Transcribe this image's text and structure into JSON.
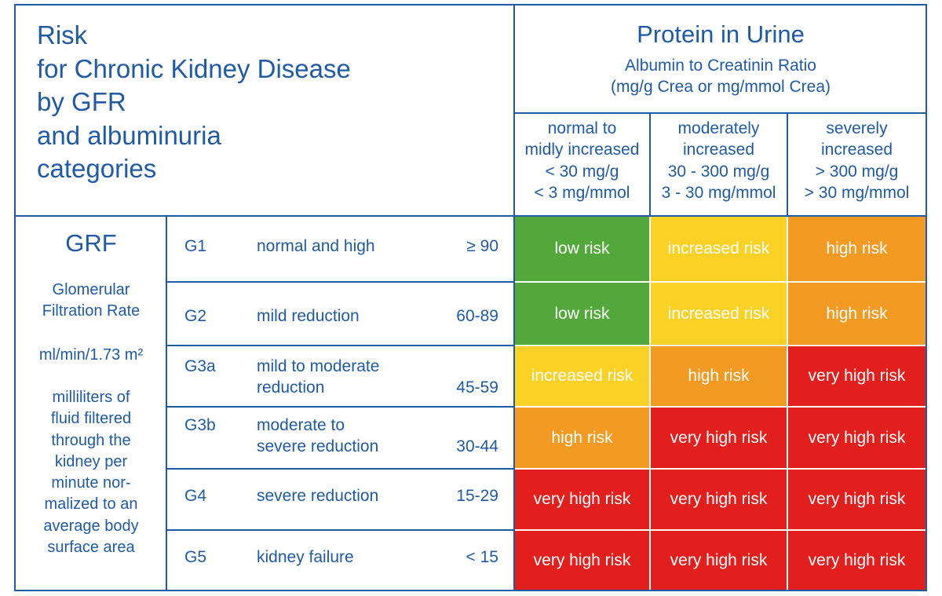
{
  "title": {
    "lines": [
      "Risk",
      "for Chronic Kidney Disease",
      "by GFR",
      "and albuminuria",
      "categories"
    ]
  },
  "protein": {
    "title": "Protein in Urine",
    "subtitle_lines": [
      "Albumin to Creatinin Ratio",
      "(mg/g Crea or mg/mmol Crea)"
    ]
  },
  "columns": [
    {
      "lines": [
        "normal to",
        "midly increased",
        "< 30 mg/g",
        "< 3 mg/mmol"
      ]
    },
    {
      "lines": [
        "moderately",
        "increased",
        "30 - 300 mg/g",
        "3 - 30 mg/mmol"
      ]
    },
    {
      "lines": [
        "severely",
        "increased",
        "> 300 mg/g",
        "> 30 mg/mmol"
      ]
    }
  ],
  "grf": {
    "title": "GRF",
    "desc_1": [
      "Glomerular",
      "Filtration Rate"
    ],
    "unit": "ml/min/1.73 m²",
    "desc_2": [
      "milliliters of",
      "fluid filtered",
      "through the",
      "kidney per",
      "minute nor-",
      "malized to an",
      "average body",
      "surface  area"
    ]
  },
  "rows": [
    {
      "code": "G1",
      "desc": [
        "normal and high"
      ],
      "range": "≥ 90",
      "cells": [
        "low risk",
        "increased risk",
        "high risk"
      ]
    },
    {
      "code": "G2",
      "desc": [
        "mild reduction"
      ],
      "range": "60-89",
      "cells": [
        "low risk",
        "increased risk",
        "high risk"
      ]
    },
    {
      "code": "G3a",
      "desc": [
        "mild to moderate",
        "reduction"
      ],
      "range": "45-59",
      "cells": [
        "increased risk",
        "high risk",
        "very high risk"
      ]
    },
    {
      "code": "G3b",
      "desc": [
        "moderate to",
        "severe reduction"
      ],
      "range": "30-44",
      "cells": [
        "high risk",
        "very high risk",
        "very high risk"
      ]
    },
    {
      "code": "G4",
      "desc": [
        "severe reduction"
      ],
      "range": "15-29",
      "cells": [
        "very high risk",
        "very high risk",
        "very high risk"
      ]
    },
    {
      "code": "G5",
      "desc": [
        "kidney failure"
      ],
      "range": "< 15",
      "cells": [
        "very high risk",
        "very high risk",
        "very high risk"
      ]
    }
  ],
  "colors": {
    "low risk": "#52a83a",
    "increased risk": "#fbd126",
    "high risk": "#f29a21",
    "very high risk": "#e21f1c",
    "line": "#1f5aa6"
  }
}
